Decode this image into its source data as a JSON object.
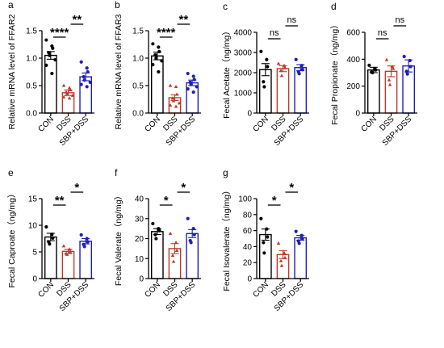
{
  "colors": {
    "CON": "#000000",
    "DSS": "#c0392b",
    "SBP+DSS": "#1f1fb4",
    "axis": "#000000"
  },
  "chart_data": [
    {
      "type": "bar",
      "panel_letter": "a",
      "categories": [
        "CON",
        "DSS",
        "SBP+DSS"
      ],
      "values": [
        1.05,
        0.37,
        0.66
      ],
      "errors": [
        0.07,
        0.05,
        0.07
      ],
      "points": [
        [
          1.33,
          1.22,
          1.18,
          1.1,
          1.05,
          0.97,
          0.87,
          0.72
        ],
        [
          0.5,
          0.46,
          0.42,
          0.38,
          0.35,
          0.32,
          0.29,
          0.27
        ],
        [
          0.93,
          0.82,
          0.75,
          0.66,
          0.6,
          0.56,
          0.52,
          0.48
        ]
      ],
      "ylabel": "Relative mRNA level of FFAR2",
      "ylim": [
        0,
        1.5
      ],
      "yticks": [
        "0.0",
        "0.5",
        "1.0",
        "1.5"
      ],
      "significance": [
        {
          "from": 0,
          "to": 1,
          "label": "****"
        },
        {
          "from": 1,
          "to": 2,
          "label": "**"
        }
      ]
    },
    {
      "type": "bar",
      "panel_letter": "b",
      "categories": [
        "CON",
        "DSS",
        "SBP+DSS"
      ],
      "values": [
        1.04,
        0.28,
        0.55
      ],
      "errors": [
        0.07,
        0.05,
        0.05
      ],
      "points": [
        [
          1.26,
          1.2,
          1.12,
          1.06,
          1.0,
          0.95,
          0.88,
          0.75
        ],
        [
          0.5,
          0.48,
          0.34,
          0.27,
          0.22,
          0.18,
          0.14,
          0.12
        ],
        [
          0.72,
          0.67,
          0.61,
          0.56,
          0.52,
          0.48,
          0.44,
          0.38
        ]
      ],
      "ylabel": "Relative mRNA level of FFAR3",
      "ylim": [
        0,
        1.5
      ],
      "yticks": [
        "0.0",
        "0.5",
        "1.0",
        "1.5"
      ],
      "significance": [
        {
          "from": 0,
          "to": 1,
          "label": "****"
        },
        {
          "from": 1,
          "to": 2,
          "label": "**"
        }
      ]
    },
    {
      "type": "bar",
      "panel_letter": "c",
      "categories": [
        "CON",
        "DSS",
        "SBP+DSS"
      ],
      "values": [
        2150,
        2200,
        2250
      ],
      "errors": [
        300,
        150,
        150
      ],
      "points": [
        [
          3050,
          2650,
          2300,
          1550,
          1300
        ],
        [
          2450,
          2350,
          2250,
          2100,
          1850
        ],
        [
          2650,
          2350,
          2150,
          2050,
          1950
        ]
      ],
      "ylabel": "Fecal Acetate（ng/mg）",
      "ylim": [
        0,
        4000
      ],
      "yticks": [
        "0",
        "1000",
        "2000",
        "3000",
        "4000"
      ],
      "significance": [
        {
          "from": 0,
          "to": 1,
          "label": "ns"
        },
        {
          "from": 1,
          "to": 2,
          "label": "ns"
        }
      ]
    },
    {
      "type": "bar",
      "panel_letter": "d",
      "categories": [
        "CON",
        "DSS",
        "SBP+DSS"
      ],
      "values": [
        320,
        310,
        350
      ],
      "errors": [
        20,
        40,
        45
      ],
      "points": [
        [
          355,
          330,
          320,
          305,
          300
        ],
        [
          395,
          345,
          330,
          245,
          210
        ],
        [
          420,
          390,
          345,
          310,
          290
        ]
      ],
      "ylabel": "Fecal Propionate（ng/mg）",
      "ylim": [
        0,
        600
      ],
      "yticks": [
        "0",
        "200",
        "400",
        "600"
      ],
      "significance": [
        {
          "from": 0,
          "to": 1,
          "label": "ns"
        },
        {
          "from": 1,
          "to": 2,
          "label": "ns"
        }
      ]
    },
    {
      "type": "bar",
      "panel_letter": "e",
      "categories": [
        "CON",
        "DSS",
        "SBP+DSS"
      ],
      "values": [
        7.8,
        5.1,
        7.0
      ],
      "errors": [
        0.7,
        0.4,
        0.5
      ],
      "points": [
        [
          9.7,
          8.3,
          7.6,
          6.9,
          6.5
        ],
        [
          6.1,
          5.5,
          5.0,
          4.7,
          4.5
        ],
        [
          8.2,
          7.5,
          6.9,
          6.4,
          6.0
        ]
      ],
      "ylabel": "Fecal Caproate（ng/mg）",
      "ylim": [
        0,
        15
      ],
      "yticks": [
        "0",
        "5",
        "10",
        "15"
      ],
      "significance": [
        {
          "from": 0,
          "to": 1,
          "label": "**"
        },
        {
          "from": 1,
          "to": 2,
          "label": "*"
        }
      ]
    },
    {
      "type": "bar",
      "panel_letter": "f",
      "categories": [
        "CON",
        "DSS",
        "SBP+DSS"
      ],
      "values": [
        23.5,
        15.0,
        22.5
      ],
      "errors": [
        1.5,
        2.5,
        2.0
      ],
      "points": [
        [
          27.5,
          25.0,
          24.0,
          22.0,
          20.0
        ],
        [
          22.5,
          18.0,
          14.0,
          11.5,
          8.5
        ],
        [
          30.0,
          25.0,
          22.0,
          19.0,
          18.0
        ]
      ],
      "ylabel": "Fecal Valerate（ng/mg）",
      "ylim": [
        0,
        40
      ],
      "yticks": [
        "0",
        "10",
        "20",
        "30",
        "40"
      ],
      "significance": [
        {
          "from": 0,
          "to": 1,
          "label": "*"
        },
        {
          "from": 1,
          "to": 2,
          "label": "*"
        }
      ]
    },
    {
      "type": "bar",
      "panel_letter": "g",
      "categories": [
        "CON",
        "DSS",
        "SBP+DSS"
      ],
      "values": [
        55,
        30,
        51
      ],
      "errors": [
        7,
        5,
        3
      ],
      "points": [
        [
          75,
          62,
          52,
          45,
          32
        ],
        [
          44,
          32,
          26,
          22,
          16
        ],
        [
          59,
          54,
          50,
          47,
          44
        ]
      ],
      "ylabel": "Fecal Isovalerate（ng/mg）",
      "ylim": [
        0,
        100
      ],
      "yticks": [
        "0",
        "20",
        "40",
        "60",
        "80",
        "100"
      ],
      "significance": [
        {
          "from": 0,
          "to": 1,
          "label": "*"
        },
        {
          "from": 1,
          "to": 2,
          "label": "*"
        }
      ]
    }
  ]
}
